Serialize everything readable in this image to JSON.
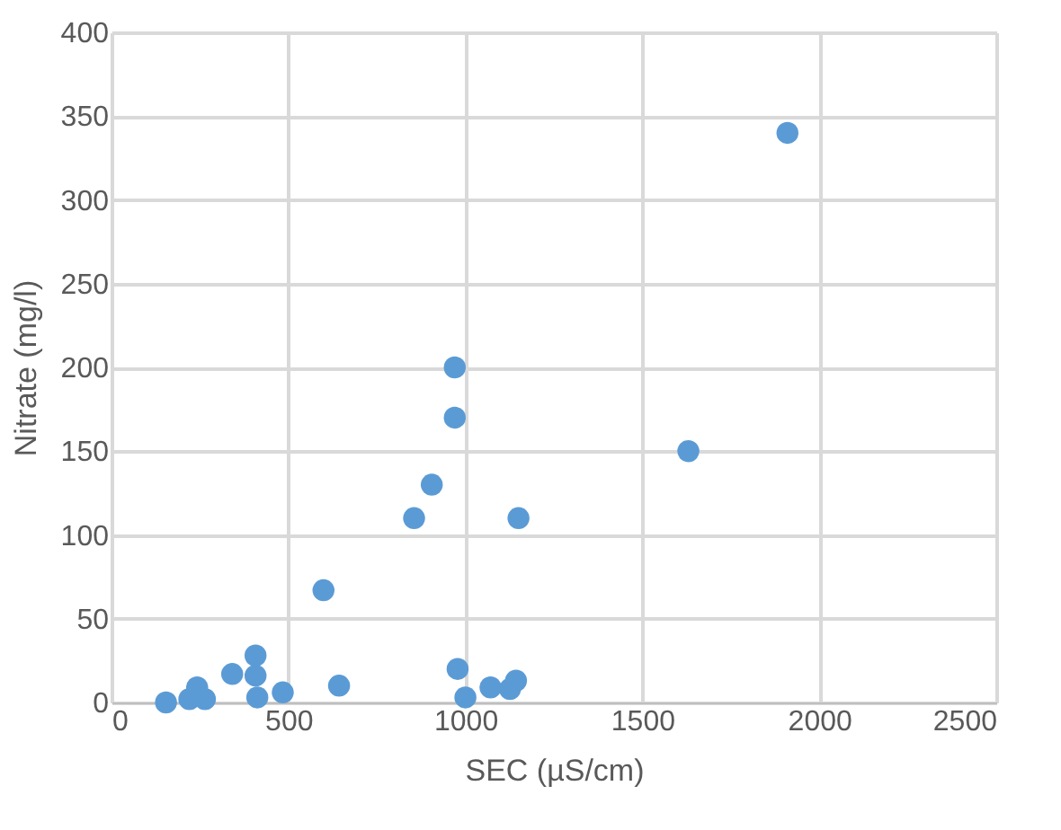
{
  "chart_data": {
    "type": "scatter",
    "xlabel": "SEC (µS/cm)",
    "ylabel": "Nitrate (mg/l)",
    "x": [
      154,
      220,
      242,
      264,
      341,
      407,
      407,
      412,
      484,
      599,
      643,
      978,
      1000,
      1071,
      1126,
      1143,
      855,
      905,
      970,
      970,
      1150,
      1630,
      1910
    ],
    "values": [
      0,
      2,
      9,
      2,
      17,
      28,
      16,
      3,
      6,
      67,
      10,
      20,
      3,
      9,
      8,
      13,
      110,
      130,
      170,
      200,
      110,
      150,
      340
    ],
    "color": "#5b9bd5",
    "marker": "circle",
    "xlim": [
      0,
      2500
    ],
    "xticks": [
      0,
      500,
      1000,
      1500,
      2000,
      2500
    ],
    "ylim": [
      0,
      400
    ],
    "yticks": [
      0,
      50,
      100,
      150,
      200,
      250,
      300,
      350,
      400
    ],
    "grid": true
  }
}
